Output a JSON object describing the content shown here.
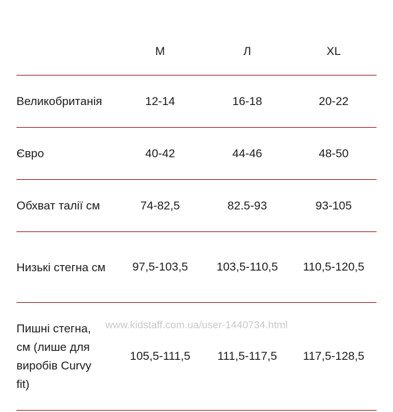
{
  "table": {
    "header": [
      "M",
      "Л",
      "XL"
    ],
    "rows": [
      [
        "Великобританія",
        "12-14",
        "16-18",
        "20-22"
      ],
      [
        "Євро",
        "40-42",
        "44-46",
        "48-50"
      ],
      [
        "Обхват талії см",
        "74-82,5",
        "82.5-93",
        "93-105"
      ],
      [
        "Низькі стегна см",
        "97,5-103,5",
        "103,5-110,5",
        "110,5-120,5"
      ],
      [
        "Пишні стегна, см (лише для виробів Curvy fit)",
        "105,5-111,5",
        "111,5-117,5",
        "117,5-128,5"
      ]
    ]
  },
  "watermark": "www.kidstaff.com.ua/user-1440734.html"
}
